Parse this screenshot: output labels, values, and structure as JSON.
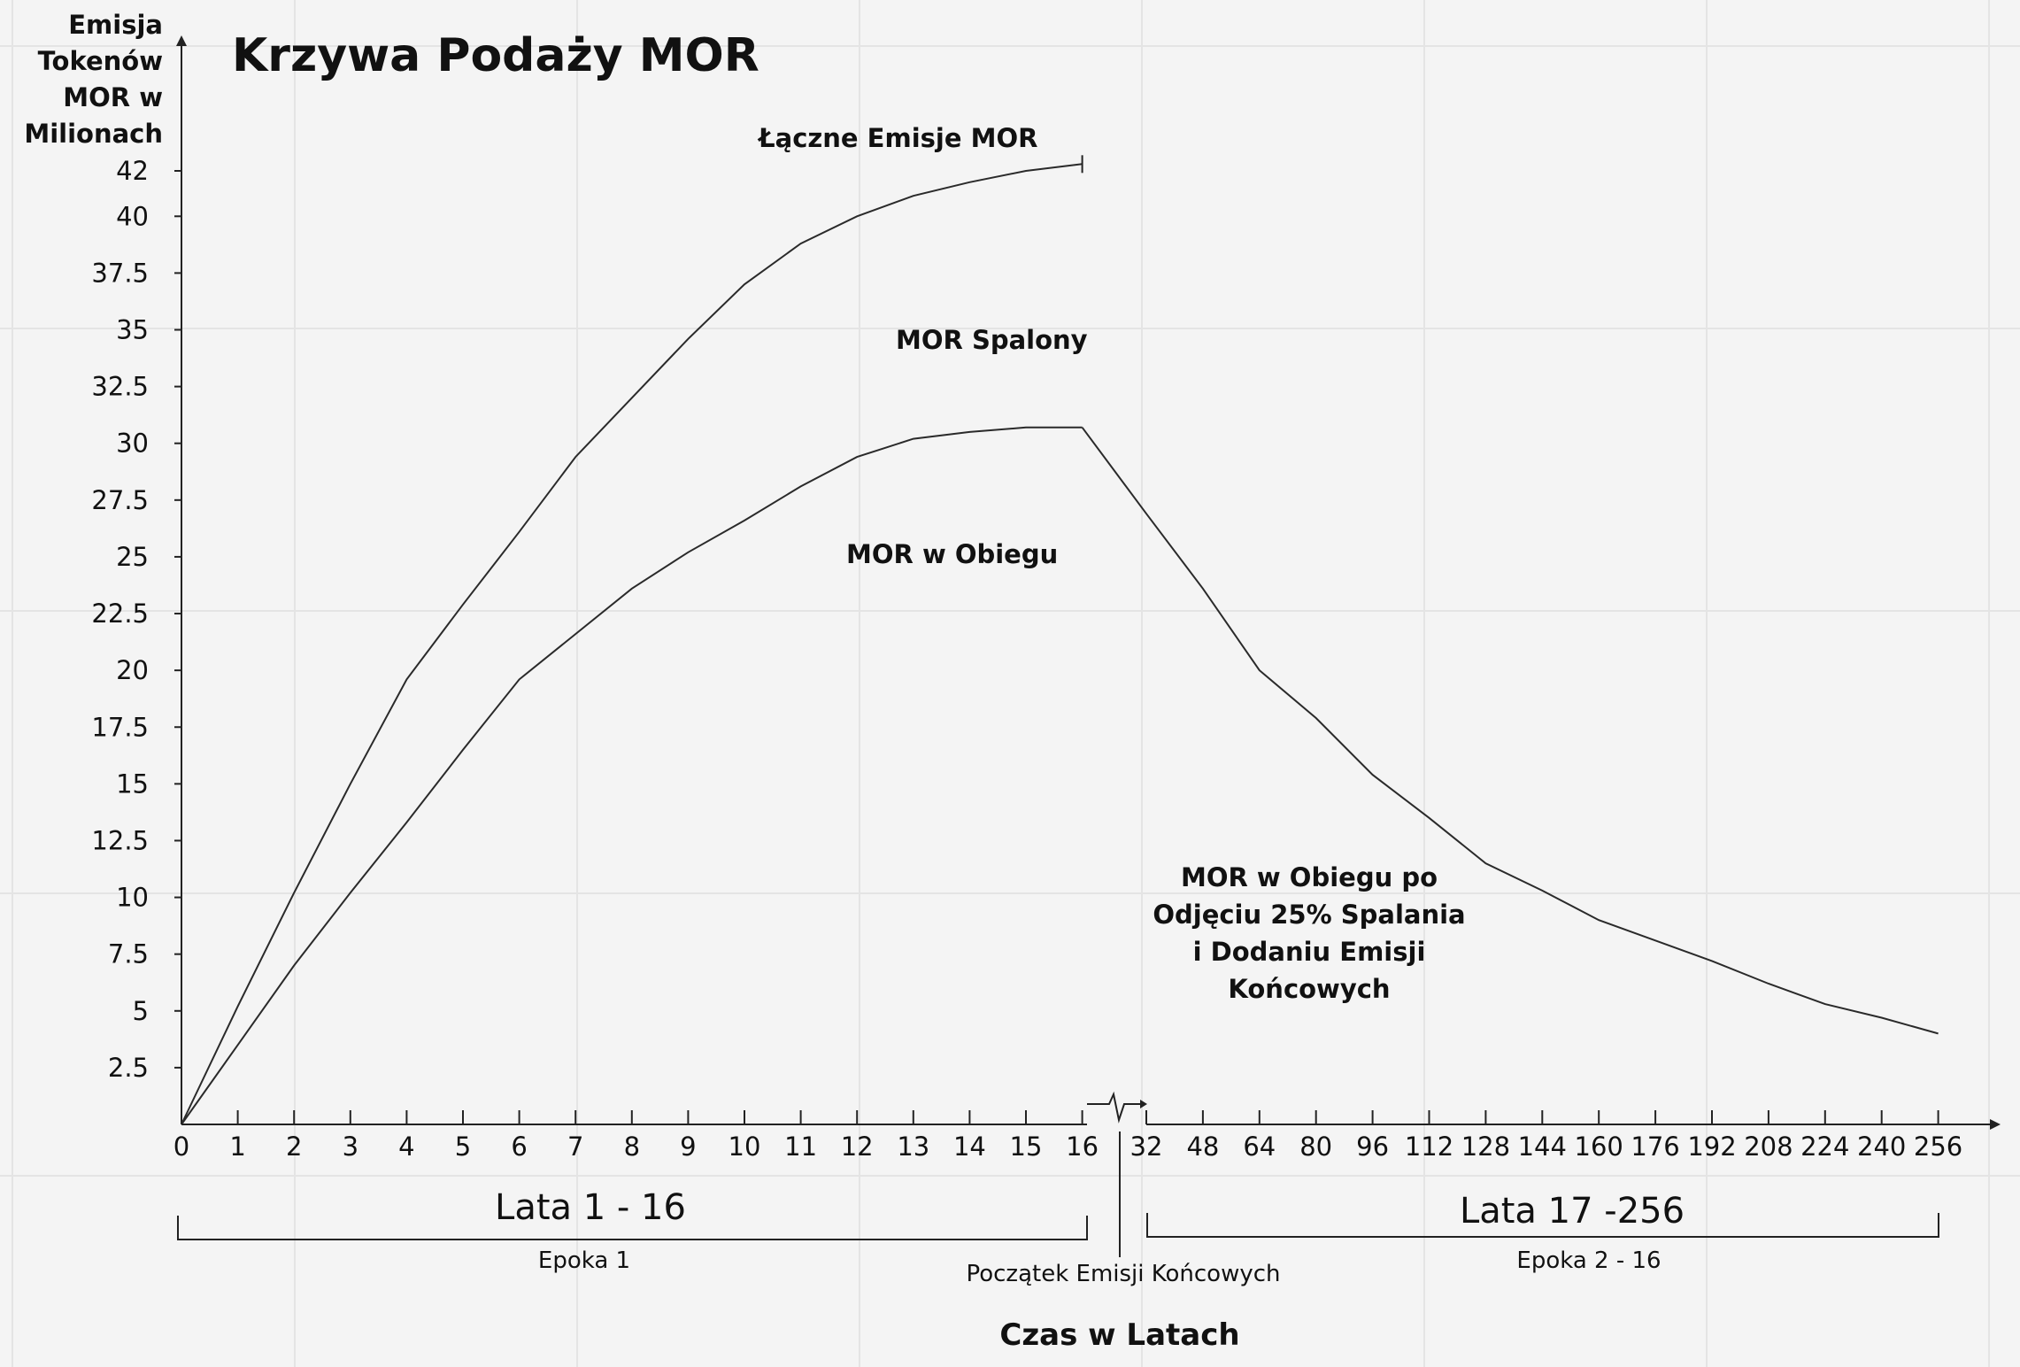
{
  "chart_data": {
    "type": "line",
    "title": "Krzywa Podaży MOR",
    "ylabel_lines": [
      "Emisja",
      "Tokenów",
      "MOR w",
      "Milionach"
    ],
    "xlabel": "Czas w Latach",
    "y_ticks": [
      "2.5",
      "5",
      "7.5",
      "10",
      "12.5",
      "15",
      "17.5",
      "20",
      "22.5",
      "25",
      "27.5",
      "30",
      "32.5",
      "35",
      "37.5",
      "40",
      "42"
    ],
    "ylim": [
      0,
      42
    ],
    "x_ticks": [
      "0",
      "1",
      "2",
      "3",
      "4",
      "5",
      "6",
      "7",
      "8",
      "9",
      "10",
      "11",
      "12",
      "13",
      "14",
      "15",
      "16",
      "32",
      "48",
      "64",
      "80",
      "96",
      "112",
      "128",
      "144",
      "160",
      "176",
      "192",
      "208",
      "224",
      "240",
      "256"
    ],
    "x_axis_break": "between 16 and 32",
    "series": [
      {
        "label": "Łączne Emisje MOR",
        "x": [
          0,
          1,
          2,
          3,
          4,
          5,
          6,
          7,
          8,
          9,
          10,
          11,
          12,
          13,
          14,
          15,
          16
        ],
        "values": [
          0,
          5.2,
          10.2,
          15,
          19.6,
          22.9,
          26.1,
          29.4,
          32,
          34.6,
          37,
          38.8,
          40,
          40.9,
          41.5,
          42,
          42.3
        ]
      },
      {
        "label": "MOR Spalony",
        "x": [
          0,
          1,
          2,
          3,
          4,
          5,
          6,
          7,
          8,
          9,
          10,
          11,
          12,
          13,
          14,
          15,
          16
        ],
        "values": [
          0,
          3.5,
          7,
          10.2,
          13.3,
          16.5,
          19.6,
          21.6,
          23.6,
          25.2,
          26.6,
          28.1,
          29.4,
          30.2,
          30.5,
          30.7,
          30.7
        ]
      },
      {
        "label": "MOR w Obiegu",
        "x": [
          16,
          32,
          48,
          64,
          80,
          96,
          112,
          128,
          144,
          160,
          176,
          192,
          208,
          224,
          240,
          256
        ],
        "values": [
          30.7,
          26.9,
          23.6,
          20,
          17.9,
          15.4,
          13.5,
          11.5,
          10.3,
          9,
          8.1,
          7.2,
          6.2,
          5.3,
          4.7,
          4
        ]
      }
    ],
    "annotations": {
      "total_label": "Łączne Emisje MOR",
      "burned_label": "MOR Spalony",
      "circulating_label": "MOR w Obiegu",
      "after_burn_lines": [
        "MOR w Obiegu po",
        "Odjęciu 25% Spalania",
        "i Dodaniu Emisji",
        "Końcowych"
      ],
      "range1_label": "Lata 1 - 16",
      "epoch1_label": "Epoka 1",
      "range2_label": "Lata 17 -256",
      "epoch2_label": "Epoka 2 - 16",
      "tail_start_label": "Początek Emisji Końcowych"
    },
    "grid": true,
    "legend": "none"
  }
}
